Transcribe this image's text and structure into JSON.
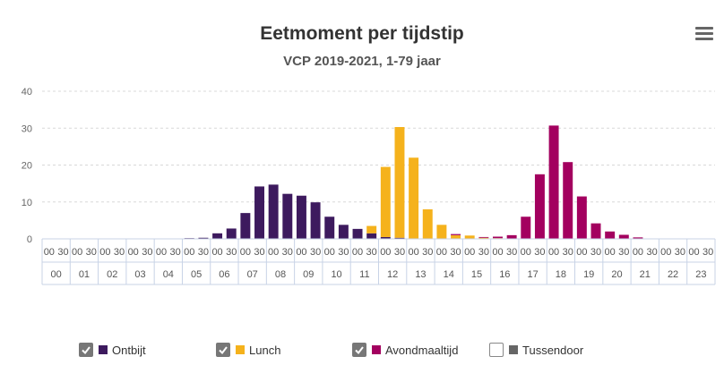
{
  "colors": {
    "ontbijt": "#3d1a5e",
    "lunch": "#f5b21c",
    "avondmaaltijd": "#a3005f",
    "tussendoor": "#666666"
  },
  "menu_icon": "hamburger-menu-icon",
  "chart_data": {
    "type": "bar",
    "stacked": true,
    "title": "Eetmoment per tijdstip",
    "subtitle": "VCP 2019-2021, 1-79 jaar",
    "xlabel": "",
    "ylabel": "",
    "ylim": [
      0,
      40
    ],
    "yticks": [
      0,
      10,
      20,
      30,
      40
    ],
    "grid": "dashed-horizontal",
    "legend_position": "bottom",
    "hours": [
      "00",
      "01",
      "02",
      "03",
      "04",
      "05",
      "06",
      "07",
      "08",
      "09",
      "10",
      "11",
      "12",
      "13",
      "14",
      "15",
      "16",
      "17",
      "18",
      "19",
      "20",
      "21",
      "22",
      "23"
    ],
    "categories": [
      "00",
      "30",
      "00",
      "30",
      "00",
      "30",
      "00",
      "30",
      "00",
      "30",
      "00",
      "30",
      "00",
      "30",
      "00",
      "30",
      "00",
      "30",
      "00",
      "30",
      "00",
      "30",
      "00",
      "30",
      "00",
      "30",
      "00",
      "30",
      "00",
      "30",
      "00",
      "30",
      "00",
      "30",
      "00",
      "30",
      "00",
      "30",
      "00",
      "30",
      "00",
      "30",
      "00",
      "30",
      "00",
      "30",
      "00",
      "30"
    ],
    "series": [
      {
        "name": "Ontbijt",
        "checked": true,
        "values": [
          0,
          0,
          0,
          0,
          0,
          0,
          0,
          0,
          0,
          0,
          0.2,
          0.3,
          1.5,
          2.8,
          7,
          14.2,
          14.7,
          12.2,
          11.7,
          9.9,
          6,
          3.8,
          2.7,
          1.5,
          0.5,
          0.3,
          0,
          0,
          0,
          0,
          0,
          0,
          0,
          0,
          0,
          0,
          0,
          0,
          0,
          0,
          0,
          0,
          0,
          0,
          0,
          0,
          0,
          0
        ]
      },
      {
        "name": "Lunch",
        "checked": true,
        "values": [
          0,
          0,
          0,
          0,
          0,
          0,
          0,
          0,
          0,
          0,
          0,
          0,
          0,
          0,
          0,
          0,
          0,
          0,
          0,
          0,
          0,
          0,
          0,
          2,
          19,
          30,
          22,
          8,
          3.8,
          1,
          0.9,
          0.3,
          0.2,
          0,
          0,
          0,
          0,
          0,
          0,
          0,
          0,
          0,
          0,
          0,
          0,
          0,
          0,
          0
        ]
      },
      {
        "name": "Avondmaaltijd",
        "checked": true,
        "values": [
          0,
          0,
          0,
          0,
          0,
          0,
          0,
          0,
          0,
          0,
          0,
          0,
          0,
          0,
          0,
          0,
          0,
          0,
          0,
          0,
          0,
          0,
          0,
          0,
          0,
          0,
          0,
          0,
          0,
          0.3,
          0,
          0.2,
          0.4,
          1,
          6,
          17.5,
          30.7,
          20.8,
          11.5,
          4.2,
          2,
          1.1,
          0.4,
          0,
          0,
          0,
          0,
          0
        ]
      },
      {
        "name": "Tussendoor",
        "checked": false,
        "values": [
          0,
          0,
          0,
          0,
          0,
          0,
          0,
          0,
          0,
          0,
          0,
          0,
          0,
          0,
          0,
          0,
          0,
          0,
          0,
          0,
          0,
          0,
          0,
          0,
          0.5,
          0.4,
          0,
          0,
          0,
          0.2,
          0,
          0,
          0,
          0,
          0,
          0,
          0.2,
          0.3,
          0,
          0,
          0,
          0,
          0,
          0,
          0,
          0,
          0,
          0
        ]
      }
    ]
  }
}
